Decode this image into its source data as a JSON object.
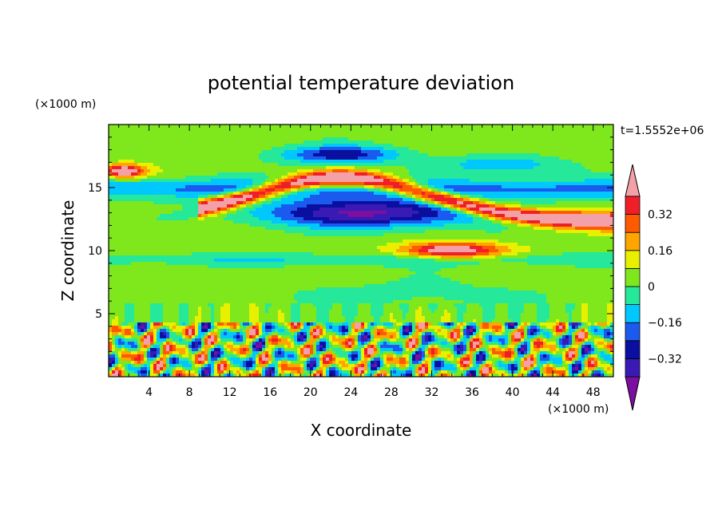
{
  "chart_data": {
    "type": "heatmap",
    "title": "potential temperature deviation",
    "time_label": "t=1.5552e+06",
    "xlabel": "X coordinate",
    "ylabel": "Z coordinate",
    "x_unit": "(×1000 m)",
    "y_unit": "(×1000 m)",
    "xlim": [
      0,
      50
    ],
    "ylim": [
      0,
      20
    ],
    "x_ticks": [
      4,
      8,
      12,
      16,
      20,
      24,
      28,
      32,
      36,
      40,
      44,
      48
    ],
    "y_ticks": [
      5,
      10,
      15
    ],
    "colorbar": {
      "levels": [
        -0.48,
        -0.4,
        -0.32,
        -0.24,
        -0.16,
        -0.08,
        0,
        0.08,
        0.16,
        0.24,
        0.32,
        0.4
      ],
      "tick_labels": [
        "-0.32",
        "-0.16",
        "0",
        "0.16",
        "0.32"
      ],
      "colors": [
        "#7a0fa0",
        "#3a1ab5",
        "#0a0fa0",
        "#1a5aee",
        "#00c8ff",
        "#26e89a",
        "#7ee81c",
        "#e8f000",
        "#ffa500",
        "#ff5a00",
        "#f01e28",
        "#f4a0a8"
      ]
    }
  }
}
